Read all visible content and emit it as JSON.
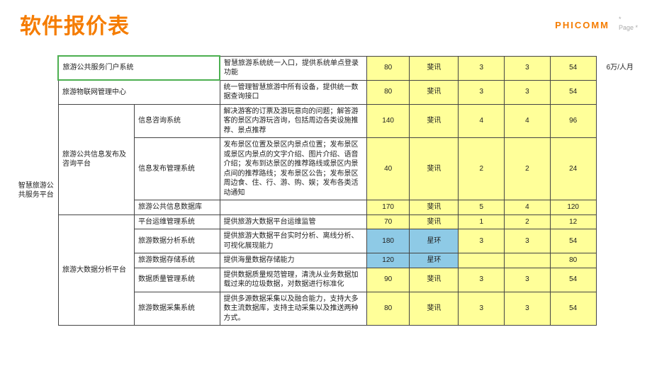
{
  "title": "软件报价表",
  "brand": "PHICOMM",
  "page_mark_top": "*",
  "page_mark_bottom": "Page *",
  "colors": {
    "accent": "#f57c00",
    "highlight_yellow": "#ffff99",
    "highlight_blue": "#8ecae6",
    "green_border": "#4caf50",
    "border": "#444444",
    "text": "#222222"
  },
  "side_label": "智慧旅游公共服务平台",
  "rows": [
    {
      "module": "旅游公共服务门户系统",
      "system": "",
      "desc": "智慧旅游系统统一入口，提供系统单点登录功能",
      "c1": "80",
      "c2": "斐讯",
      "c3": "3",
      "c4": "3",
      "c5": "54",
      "c6": "6万/人月"
    },
    {
      "module": "旅游物联网管理中心",
      "system": "",
      "desc": "统一管理智慧旅游中所有设备，提供统一数据查询接口",
      "c1": "80",
      "c2": "斐讯",
      "c3": "3",
      "c4": "3",
      "c5": "54",
      "c6": ""
    },
    {
      "module": "旅游公共信息发布及咨询平台",
      "system": "信息咨询系统",
      "desc": "解决游客的订票及游玩意向的问题；解答游客的景区内游玩咨询，包括周边各类设施推荐、景点推荐",
      "c1": "140",
      "c2": "斐讯",
      "c3": "4",
      "c4": "4",
      "c5": "96",
      "c6": ""
    },
    {
      "module": "",
      "system": "信息发布管理系统",
      "desc": "发布景区位置及景区内景点位置；发布景区或景区内景点的文字介绍、图片介绍、语音介绍；发布到达景区的推荐路线或景区内景点间的推荐路线；发布景区公告；发布景区周边食、住、行、游、购、娱；发布各类活动通知",
      "c1": "40",
      "c2": "斐讯",
      "c3": "2",
      "c4": "2",
      "c5": "24",
      "c6": ""
    },
    {
      "module": "",
      "system": "旅游公共信息数据库",
      "desc": "",
      "c1": "170",
      "c2": "斐讯",
      "c3": "5",
      "c4": "4",
      "c5": "120",
      "c6": ""
    },
    {
      "module": "旅游大数据分析平台",
      "system": "平台运维管理系统",
      "desc": "提供旅游大数据平台运维监管",
      "c1": "70",
      "c2": "斐讯",
      "c3": "1",
      "c4": "2",
      "c5": "12",
      "c6": ""
    },
    {
      "module": "",
      "system": "旅游数据分析系统",
      "desc": "提供旅游大数据平台实时分析、离线分析、可视化展现能力",
      "c1": "180",
      "c2": "星环",
      "c3": "3",
      "c4": "3",
      "c5": "54",
      "c6": ""
    },
    {
      "module": "",
      "system": "旅游数据存储系统",
      "desc": "提供海量数据存储能力",
      "c1": "120",
      "c2": "星环",
      "c3": "",
      "c4": "",
      "c5": "80",
      "c6": ""
    },
    {
      "module": "",
      "system": "数据质量管理系统",
      "desc": "提供数据质量规范管理，清洗从业务数据加载过来的垃圾数据，对数据进行标准化",
      "c1": "90",
      "c2": "斐讯",
      "c3": "3",
      "c4": "3",
      "c5": "54",
      "c6": ""
    },
    {
      "module": "",
      "system": "旅游数据采集系统",
      "desc": "提供多源数据采集以及融合能力，支持大多数主流数据库，支持主动采集以及推送两种方式。",
      "c1": "80",
      "c2": "斐讯",
      "c3": "3",
      "c4": "3",
      "c5": "54",
      "c6": ""
    }
  ]
}
